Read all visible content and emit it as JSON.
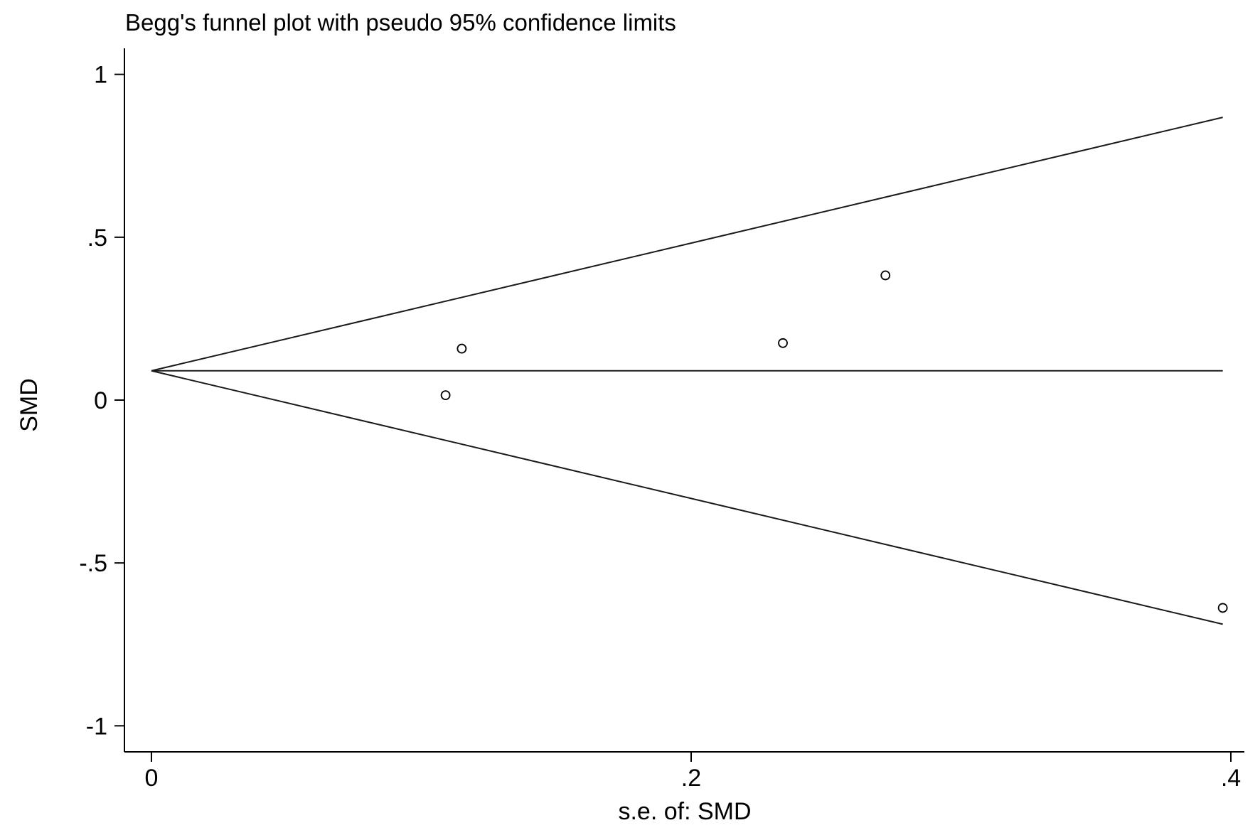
{
  "chart_data": {
    "type": "scatter",
    "title": "Begg's funnel plot with pseudo 95% confidence limits",
    "xlabel": "s.e. of: SMD",
    "ylabel": "SMD",
    "xlim": [
      -0.01,
      0.405
    ],
    "ylim": [
      -1.08,
      1.08
    ],
    "x_ticks": [
      {
        "value": 0,
        "label": "0"
      },
      {
        "value": 0.2,
        "label": ".2"
      },
      {
        "value": 0.4,
        "label": ".4"
      }
    ],
    "y_ticks": [
      {
        "value": 1,
        "label": "1"
      },
      {
        "value": 0.5,
        "label": ".5"
      },
      {
        "value": 0,
        "label": "0"
      },
      {
        "value": -0.5,
        "label": "-.5"
      },
      {
        "value": -1,
        "label": "-1"
      }
    ],
    "grid": false,
    "pooled_estimate": 0.09,
    "funnel_x_range": [
      0,
      0.397
    ],
    "z": 1.96,
    "points": [
      {
        "x": 0.109,
        "y": 0.015
      },
      {
        "x": 0.115,
        "y": 0.158
      },
      {
        "x": 0.234,
        "y": 0.175
      },
      {
        "x": 0.272,
        "y": 0.383
      },
      {
        "x": 0.397,
        "y": -0.638
      }
    ]
  }
}
